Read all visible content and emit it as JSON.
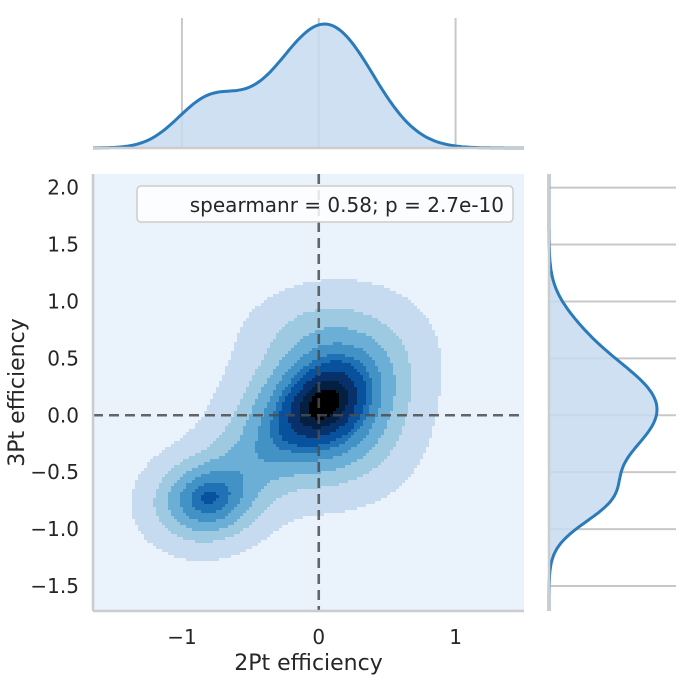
{
  "chart_data": {
    "type": "jointplot-kde",
    "xlabel": "2Pt efficiency",
    "ylabel": "3Pt efficiency",
    "xlim": [
      -1.65,
      1.5
    ],
    "ylim": [
      -1.72,
      2.12
    ],
    "x_ticks": [
      -1,
      0,
      1
    ],
    "x_tick_labels": [
      "−1",
      "0",
      "1"
    ],
    "y_ticks": [
      -1.5,
      -1.0,
      -0.5,
      0.0,
      0.5,
      1.0,
      1.5,
      2.0
    ],
    "y_tick_labels": [
      "−1.5",
      "−1.0",
      "−0.5",
      "0.0",
      "0.5",
      "1.0",
      "1.5",
      "2.0"
    ],
    "annotation": "spearmanr = 0.58; p = 2.7e-10",
    "legend_position": "top-right",
    "reference_lines": {
      "x": 0,
      "y": 0,
      "style": "dashed"
    },
    "grid": true,
    "colors": {
      "line": "#2b7bba",
      "fill": "#c6dbef",
      "background": "#eaf2fb",
      "levels": [
        "#c6dbef",
        "#9ecae1",
        "#6baed6",
        "#4292c6",
        "#2171b5",
        "#08519c",
        "#08306b",
        "#041f3f",
        "#000000"
      ],
      "refline": "#4d4d4d"
    },
    "kde_components": [
      {
        "center": [
          -0.82,
          -0.75
        ],
        "sigma": [
          0.23,
          0.22
        ],
        "rho": 0.05,
        "weight": 0.62
      },
      {
        "center": [
          0.05,
          0.15
        ],
        "sigma": [
          0.33,
          0.38
        ],
        "rho": 0.3,
        "weight": 0.95
      },
      {
        "center": [
          -0.45,
          -0.35
        ],
        "sigma": [
          0.3,
          0.3
        ],
        "rho": 0.45,
        "weight": 0.22
      },
      {
        "center": [
          0.25,
          -0.25
        ],
        "sigma": [
          0.28,
          0.3
        ],
        "rho": 0.1,
        "weight": 0.16
      },
      {
        "center": [
          -0.1,
          0.8
        ],
        "sigma": [
          0.28,
          0.22
        ],
        "rho": 0.2,
        "weight": 0.1
      }
    ],
    "contour_levels": [
      0.035,
      0.16,
      0.3,
      0.45,
      0.58,
      0.66,
      0.78,
      0.88,
      0.95
    ]
  }
}
